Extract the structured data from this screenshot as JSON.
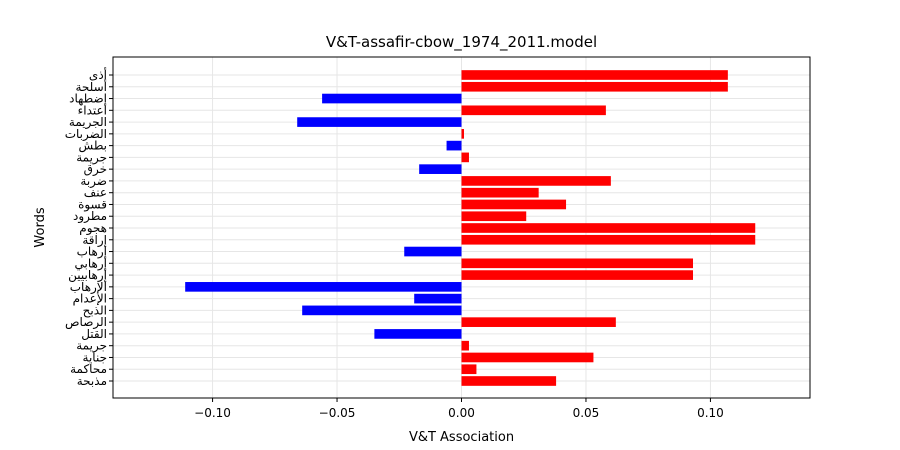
{
  "chart_data": {
    "type": "bar",
    "orientation": "horizontal",
    "title": "V&T-assafir-cbow_1974_2011.model",
    "xlabel": "V&T Association",
    "ylabel": "Words",
    "xlim": [
      -0.14,
      0.14
    ],
    "xticks": [
      -0.1,
      -0.05,
      0.0,
      0.05,
      0.1
    ],
    "xtick_labels": [
      "−0.10",
      "−0.05",
      "0.00",
      "0.05",
      "0.10"
    ],
    "grid": true,
    "positive_color": "#ff0000",
    "negative_color": "#0000ff",
    "categories": [
      "أذى",
      "أسلحة",
      "إضطهاد",
      "اعتداء",
      "الجريمة",
      "الضربات",
      "بطش",
      "جريمة",
      "خرق",
      "ضربة",
      "عنف",
      "قسوة",
      "مطرود",
      "هجوم",
      "إراقة",
      "إرهاب",
      "إرهابي",
      "إرهابيين",
      "الإرهاب",
      "الإعدام",
      "الذبح",
      "الرصاص",
      "القتل",
      "جريمة",
      "جناية",
      "محاكمة",
      "مذبحة"
    ],
    "values": [
      0.107,
      0.107,
      -0.056,
      0.058,
      -0.066,
      0.001,
      -0.006,
      0.003,
      -0.017,
      0.06,
      0.031,
      0.042,
      0.026,
      0.118,
      0.118,
      -0.023,
      0.093,
      0.093,
      -0.111,
      -0.019,
      -0.064,
      0.062,
      -0.035,
      0.003,
      0.053,
      0.006,
      0.038
    ]
  }
}
